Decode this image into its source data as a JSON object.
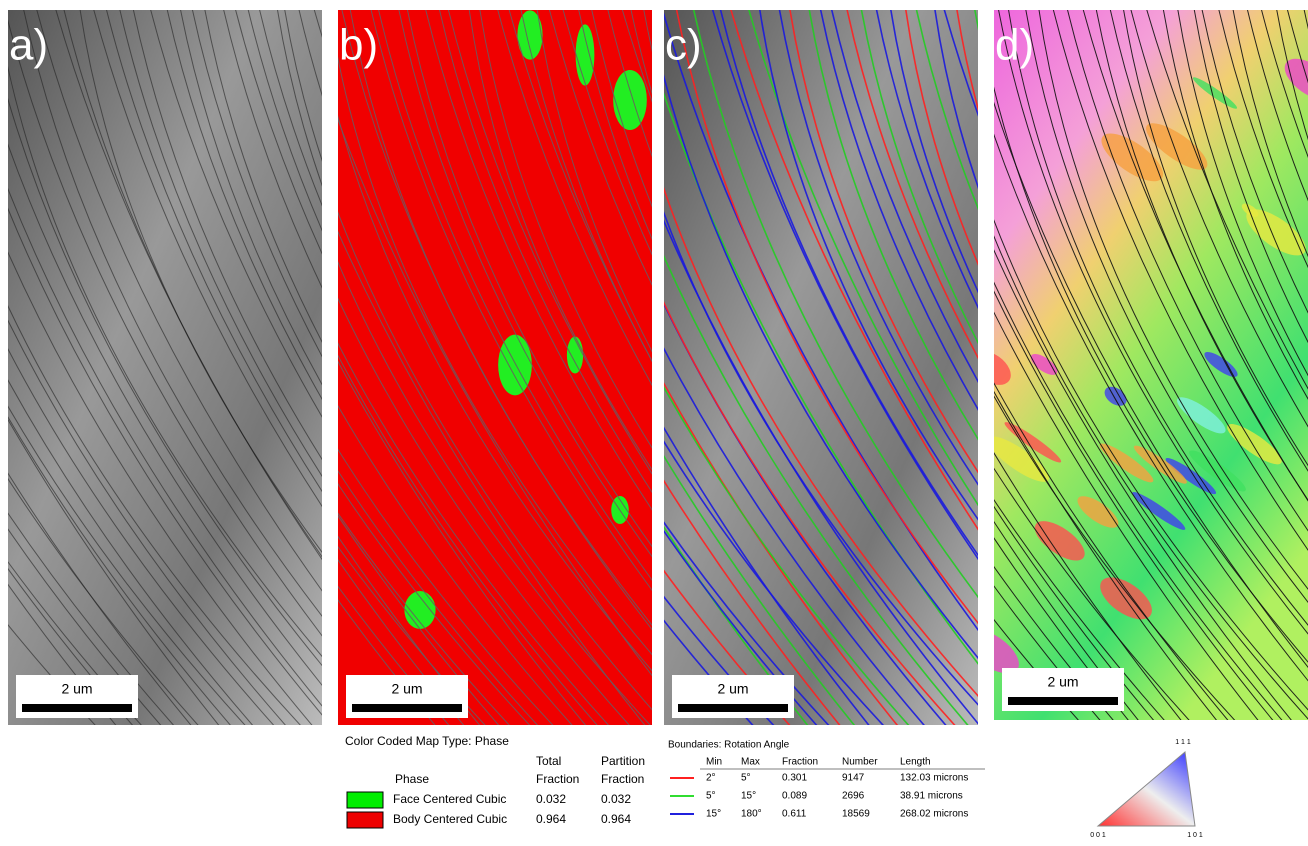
{
  "panels": [
    {
      "label": "a)",
      "scale_bar": "2 um"
    },
    {
      "label": "b)",
      "scale_bar": "2 um"
    },
    {
      "label": "c)",
      "scale_bar": "2 um"
    },
    {
      "label": "d)",
      "scale_bar": "2 um"
    }
  ],
  "phase_legend": {
    "title": "Color Coded Map Type: Phase",
    "headers": [
      [
        "Phase"
      ],
      [
        "Total",
        "Fraction"
      ],
      [
        "Partition",
        "Fraction"
      ]
    ],
    "rows": [
      {
        "color": "#00ee00",
        "cells": [
          "Face Centered Cubic",
          "0.032",
          "0.032"
        ]
      },
      {
        "color": "#ee0000",
        "cells": [
          "Body Centered Cubic",
          "0.964",
          "0.964"
        ]
      }
    ]
  },
  "boundary_legend": {
    "title": "Boundaries: Rotation Angle",
    "headers": [
      "Min",
      "Max",
      "Fraction",
      "Number",
      "Length"
    ],
    "rows": [
      {
        "color": "#ff2020",
        "cells": [
          "2°",
          "5°",
          "0.301",
          "9147",
          "132.03 microns"
        ]
      },
      {
        "color": "#30dd30",
        "cells": [
          "5°",
          "15°",
          "0.089",
          "2696",
          "38.91 microns"
        ]
      },
      {
        "color": "#2020dd",
        "cells": [
          "15°",
          "180°",
          "0.611",
          "18569",
          "268.02 microns"
        ]
      }
    ]
  },
  "ipf_key": {
    "top": "1 1 1",
    "left": "0 0 1",
    "right": "1 0 1"
  }
}
